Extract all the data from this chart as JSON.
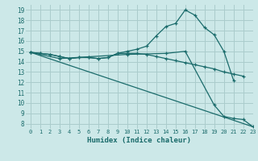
{
  "xlabel": "Humidex (Indice chaleur)",
  "background_color": "#cce8e8",
  "grid_color": "#aacccc",
  "line_color": "#1a6b6b",
  "xlim": [
    -0.5,
    23
  ],
  "ylim": [
    7.5,
    19.5
  ],
  "xticks": [
    0,
    1,
    2,
    3,
    4,
    5,
    6,
    7,
    8,
    9,
    10,
    11,
    12,
    13,
    14,
    15,
    16,
    17,
    18,
    19,
    20,
    21,
    22,
    23
  ],
  "yticks": [
    8,
    9,
    10,
    11,
    12,
    13,
    14,
    15,
    16,
    17,
    18,
    19
  ],
  "line1_x": [
    0,
    1,
    2,
    3,
    4,
    5,
    6,
    7,
    8,
    9,
    10,
    11,
    12,
    13,
    14,
    15,
    16,
    17,
    18,
    19,
    20,
    21
  ],
  "line1_y": [
    14.9,
    14.8,
    14.7,
    14.5,
    14.3,
    14.4,
    14.4,
    14.3,
    14.4,
    14.8,
    15.0,
    15.2,
    15.5,
    16.5,
    17.4,
    17.7,
    19.0,
    18.5,
    17.3,
    16.6,
    15.0,
    12.2
  ],
  "line2_x": [
    0,
    1,
    2,
    3,
    4,
    5,
    6,
    7,
    8,
    9,
    10,
    11,
    12,
    13,
    14,
    15,
    16,
    17,
    18,
    19,
    20,
    21,
    22
  ],
  "line2_y": [
    14.9,
    14.8,
    14.7,
    14.5,
    14.3,
    14.4,
    14.4,
    14.3,
    14.4,
    14.8,
    14.8,
    14.8,
    14.7,
    14.5,
    14.3,
    14.1,
    13.9,
    13.7,
    13.5,
    13.3,
    13.0,
    12.8,
    12.6
  ],
  "line3_x": [
    0,
    23
  ],
  "line3_y": [
    14.9,
    7.7
  ],
  "line4_x": [
    0,
    3,
    10,
    14,
    16,
    19,
    20,
    21,
    22,
    23
  ],
  "line4_y": [
    14.9,
    14.3,
    14.7,
    14.8,
    15.0,
    9.8,
    8.7,
    8.5,
    8.4,
    7.7
  ]
}
